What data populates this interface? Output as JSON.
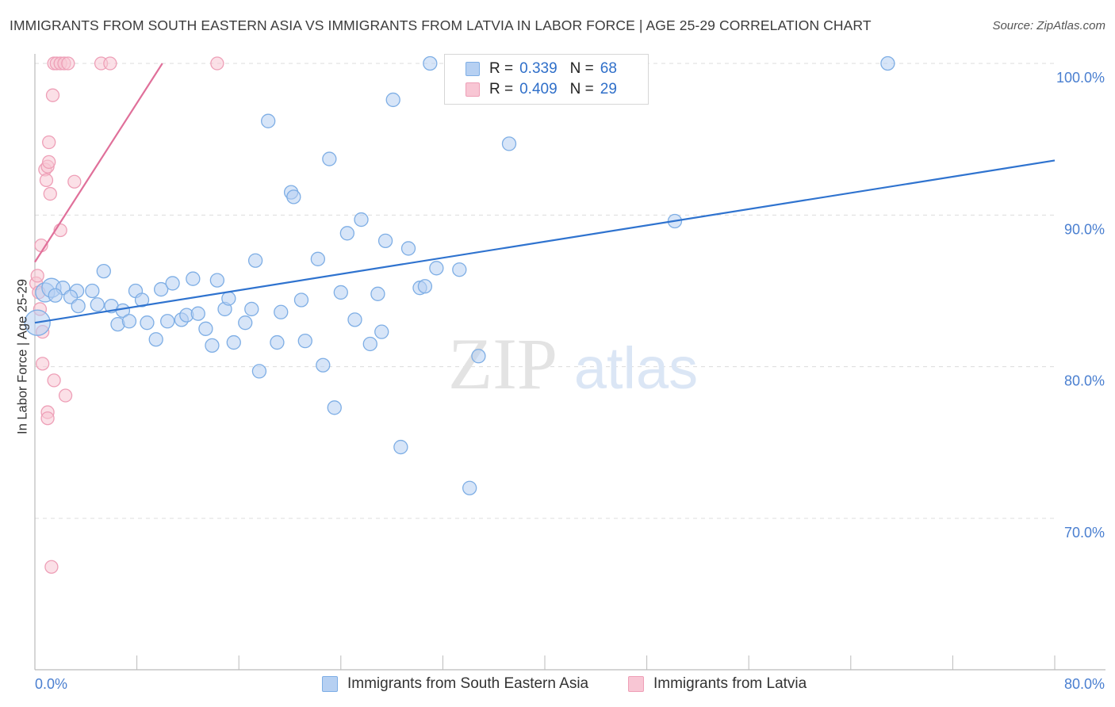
{
  "header": {
    "title": "IMMIGRANTS FROM SOUTH EASTERN ASIA VS IMMIGRANTS FROM LATVIA IN LABOR FORCE | AGE 25-29 CORRELATION CHART",
    "source": "Source: ZipAtlas.com"
  },
  "watermark": {
    "zip": "ZIP",
    "atlas": "atlas"
  },
  "legend": {
    "series_a": {
      "r_label": "R =",
      "r_value": "0.339",
      "n_label": "N =",
      "n_value": "68"
    },
    "series_b": {
      "r_label": "R =",
      "r_value": "0.409",
      "n_label": "N =",
      "n_value": "29"
    }
  },
  "bottom_legend": {
    "series_a": "Immigrants from South Eastern Asia",
    "series_b": "Immigrants from Latvia"
  },
  "colors": {
    "blue_fill": "#b6d0f2",
    "blue_stroke": "#7eaee5",
    "blue_line": "#2f73cf",
    "pink_fill": "#f8c6d4",
    "pink_stroke": "#ee9fb7",
    "pink_line": "#e0709a",
    "tick_text": "#4a7fd0"
  },
  "chart_data": {
    "type": "scatter",
    "title": "IMMIGRANTS FROM SOUTH EASTERN ASIA VS IMMIGRANTS FROM LATVIA IN LABOR FORCE | AGE 25-29 CORRELATION CHART",
    "xlabel": "",
    "ylabel": "In Labor Force | Age 25-29",
    "xlim": [
      0,
      80
    ],
    "ylim": [
      60,
      100
    ],
    "x_tick_labels": [
      "0.0%",
      "80.0%"
    ],
    "y_ticks": [
      70,
      80,
      90,
      100
    ],
    "y_tick_labels": [
      "70.0%",
      "80.0%",
      "90.0%",
      "100.0%"
    ],
    "grid": true,
    "series": [
      {
        "name": "Immigrants from South Eastern Asia",
        "r": 0.339,
        "n": 68,
        "trendline": {
          "x": [
            0,
            80
          ],
          "y": [
            82.9,
            93.6
          ]
        },
        "points": [
          [
            0.2,
            82.9
          ],
          [
            0.8,
            84.9
          ],
          [
            1.3,
            85.2
          ],
          [
            2.2,
            85.2
          ],
          [
            3.3,
            85.0
          ],
          [
            4.5,
            85.0
          ],
          [
            1.6,
            84.7
          ],
          [
            2.8,
            84.6
          ],
          [
            3.4,
            84.0
          ],
          [
            4.9,
            84.1
          ],
          [
            5.4,
            86.3
          ],
          [
            6.0,
            84.0
          ],
          [
            6.5,
            82.8
          ],
          [
            6.9,
            83.7
          ],
          [
            7.4,
            83.0
          ],
          [
            7.9,
            85.0
          ],
          [
            8.4,
            84.4
          ],
          [
            8.8,
            82.9
          ],
          [
            9.5,
            81.8
          ],
          [
            9.9,
            85.1
          ],
          [
            10.4,
            83.0
          ],
          [
            10.8,
            85.5
          ],
          [
            11.5,
            83.1
          ],
          [
            11.9,
            83.4
          ],
          [
            12.4,
            85.8
          ],
          [
            12.8,
            83.5
          ],
          [
            13.4,
            82.5
          ],
          [
            13.9,
            81.4
          ],
          [
            14.3,
            85.7
          ],
          [
            14.9,
            83.8
          ],
          [
            15.2,
            84.5
          ],
          [
            15.6,
            81.6
          ],
          [
            16.5,
            82.9
          ],
          [
            17.0,
            83.8
          ],
          [
            17.3,
            87.0
          ],
          [
            17.6,
            79.7
          ],
          [
            18.3,
            96.2
          ],
          [
            19.0,
            81.6
          ],
          [
            19.3,
            83.6
          ],
          [
            20.1,
            91.5
          ],
          [
            20.3,
            91.2
          ],
          [
            20.9,
            84.4
          ],
          [
            21.2,
            81.7
          ],
          [
            22.2,
            87.1
          ],
          [
            22.6,
            80.1
          ],
          [
            23.1,
            93.7
          ],
          [
            23.5,
            77.3
          ],
          [
            24.0,
            84.9
          ],
          [
            24.5,
            88.8
          ],
          [
            25.1,
            83.1
          ],
          [
            25.6,
            89.7
          ],
          [
            26.3,
            81.5
          ],
          [
            26.9,
            84.8
          ],
          [
            27.2,
            82.3
          ],
          [
            27.5,
            88.3
          ],
          [
            28.1,
            97.6
          ],
          [
            28.7,
            74.7
          ],
          [
            29.3,
            87.8
          ],
          [
            30.2,
            85.2
          ],
          [
            30.6,
            85.3
          ],
          [
            31.0,
            100.0
          ],
          [
            31.5,
            86.5
          ],
          [
            33.3,
            86.4
          ],
          [
            34.1,
            72.0
          ],
          [
            34.8,
            80.7
          ],
          [
            37.2,
            94.7
          ],
          [
            50.2,
            89.6
          ],
          [
            66.9,
            100.0
          ]
        ]
      },
      {
        "name": "Immigrants from Latvia",
        "r": 0.409,
        "n": 29,
        "trendline": {
          "x": [
            0,
            10.0
          ],
          "y": [
            86.9,
            100.0
          ]
        },
        "points": [
          [
            0.1,
            85.5
          ],
          [
            0.2,
            86.0
          ],
          [
            0.3,
            84.9
          ],
          [
            0.4,
            83.8
          ],
          [
            0.5,
            88.0
          ],
          [
            0.6,
            82.3
          ],
          [
            0.6,
            80.2
          ],
          [
            0.8,
            93.0
          ],
          [
            0.9,
            92.3
          ],
          [
            1.0,
            93.2
          ],
          [
            1.0,
            77.0
          ],
          [
            1.0,
            76.6
          ],
          [
            1.1,
            94.8
          ],
          [
            1.1,
            93.5
          ],
          [
            1.2,
            91.4
          ],
          [
            1.3,
            66.8
          ],
          [
            1.4,
            97.9
          ],
          [
            1.5,
            79.1
          ],
          [
            1.5,
            100.0
          ],
          [
            1.7,
            100.0
          ],
          [
            2.0,
            100.0
          ],
          [
            2.0,
            89.0
          ],
          [
            2.3,
            100.0
          ],
          [
            2.4,
            78.1
          ],
          [
            2.6,
            100.0
          ],
          [
            3.1,
            92.2
          ],
          [
            5.2,
            100.0
          ],
          [
            5.9,
            100.0
          ],
          [
            14.3,
            100.0
          ]
        ]
      }
    ]
  }
}
